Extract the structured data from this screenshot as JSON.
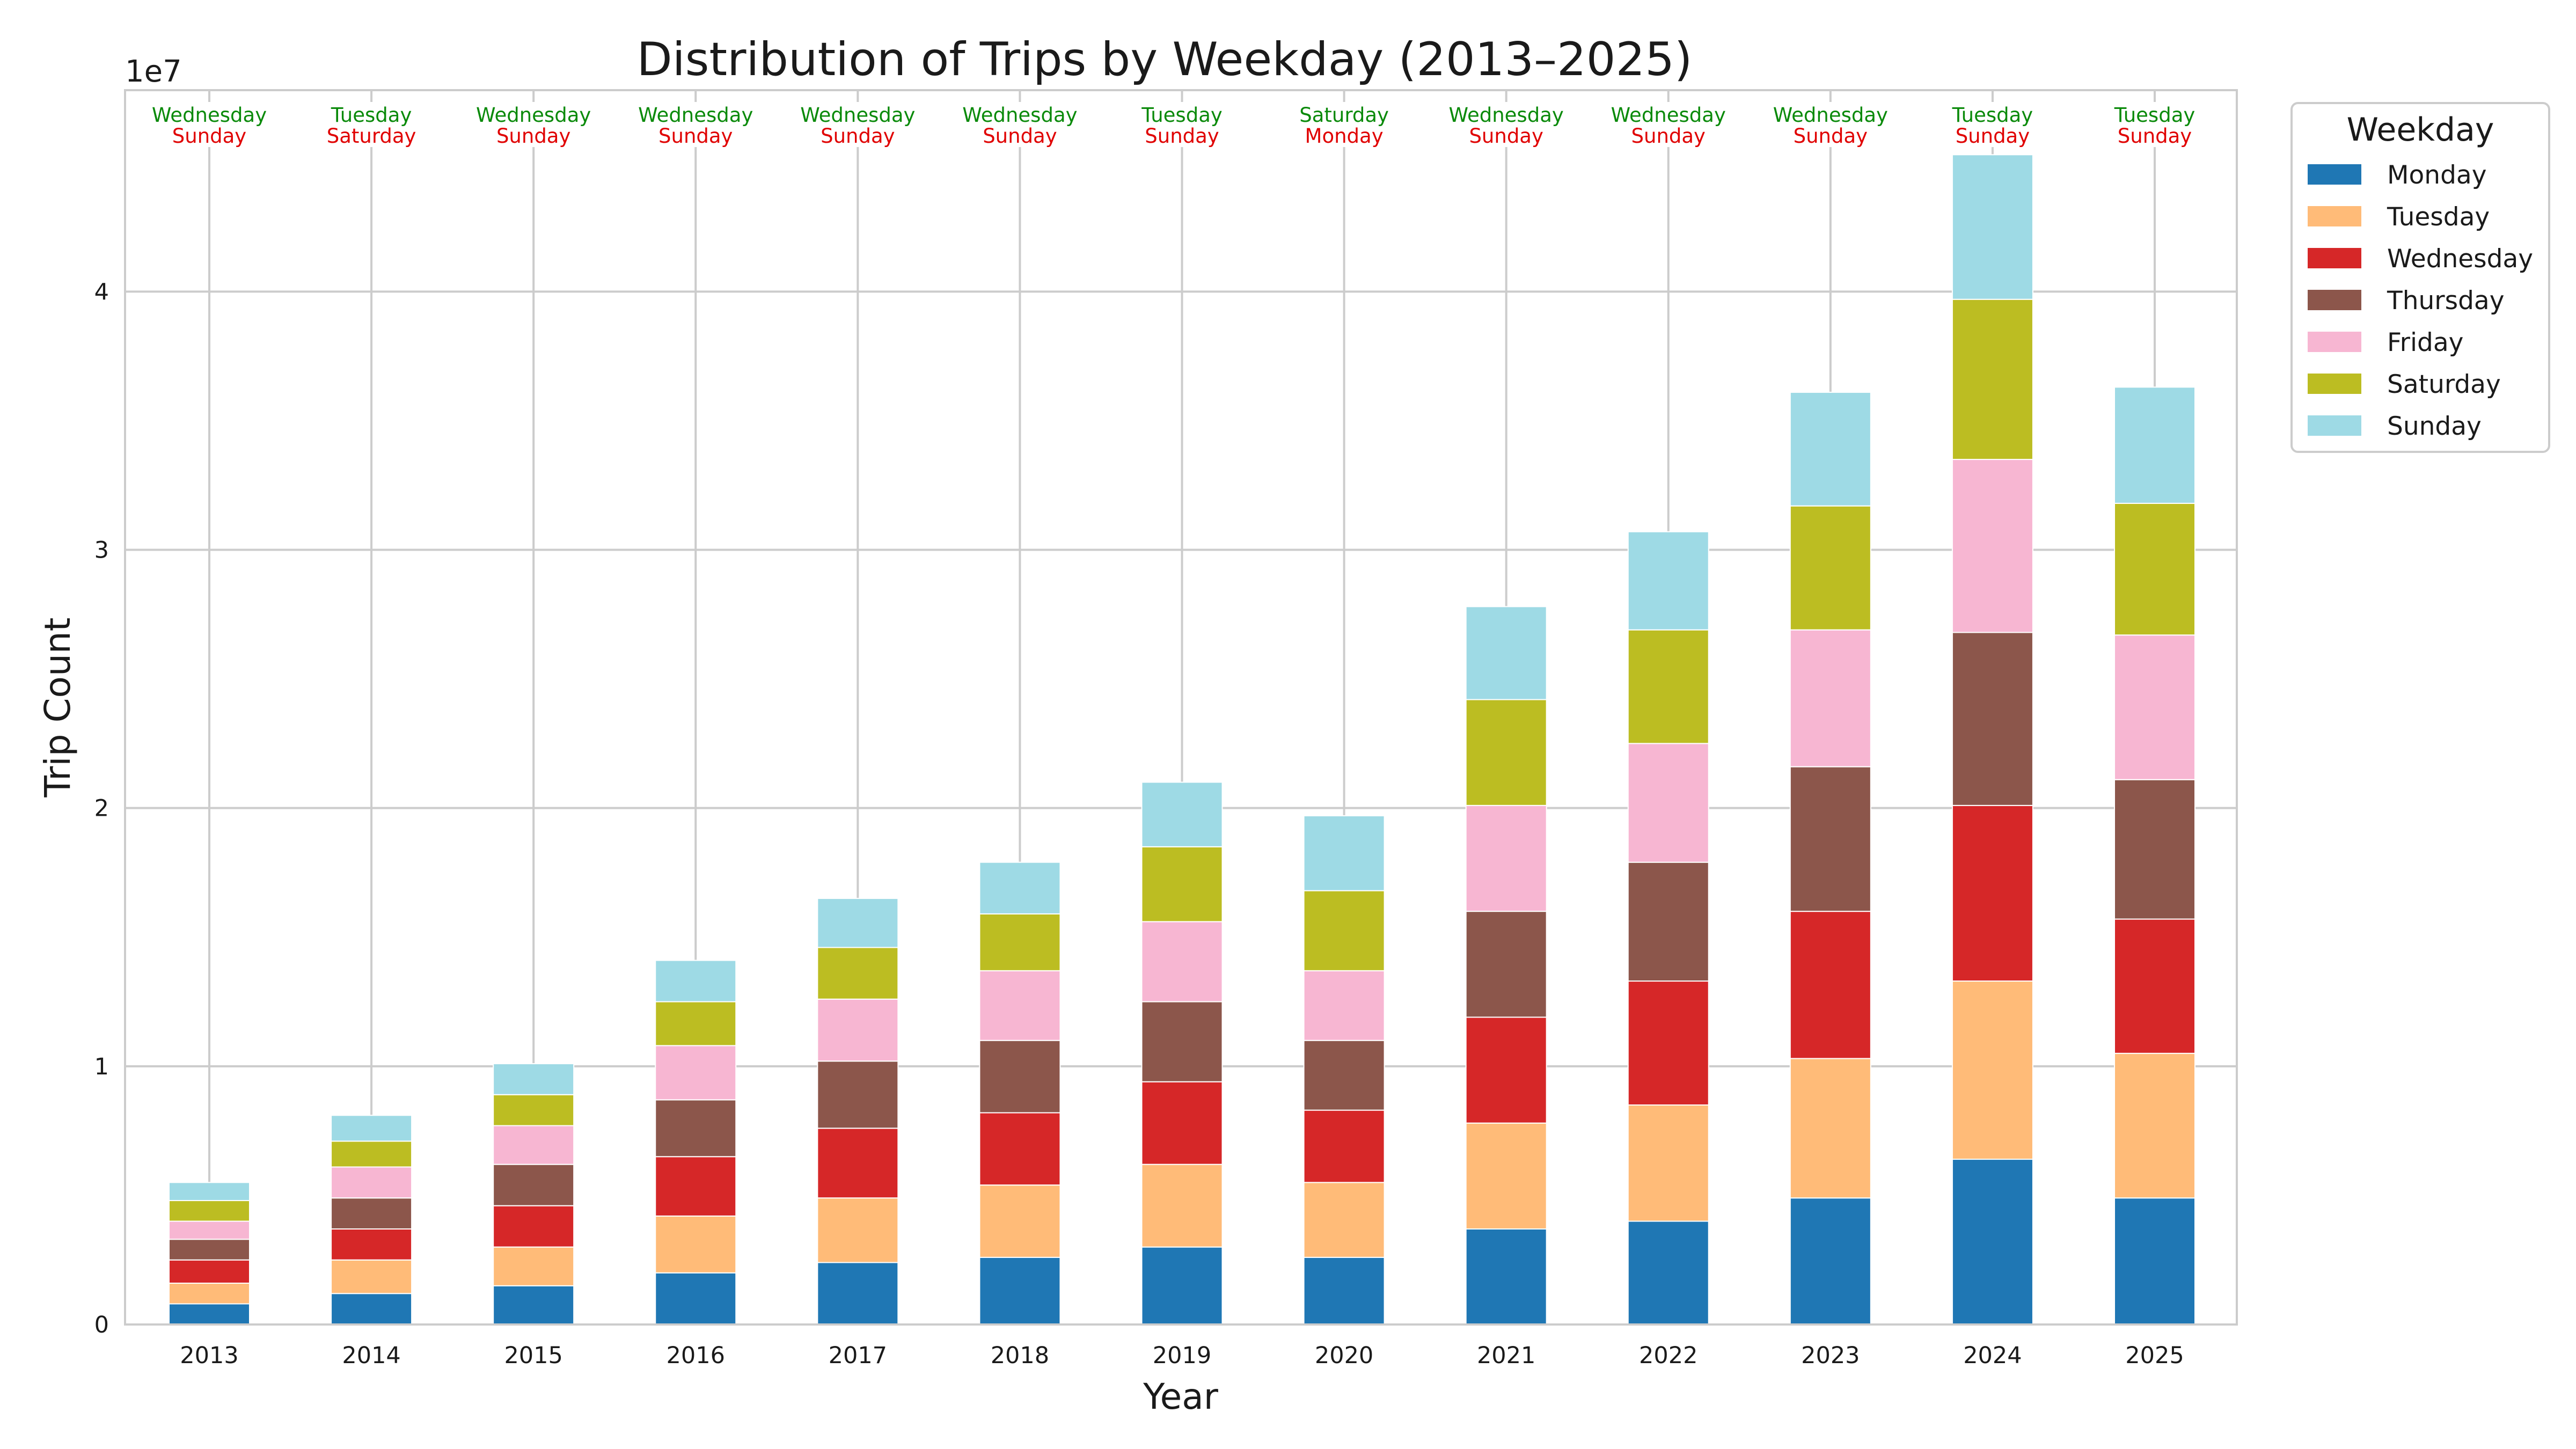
{
  "chart_data": {
    "type": "bar",
    "stacked": true,
    "title": "Distribution of Trips by Weekday (2013–2025)",
    "xlabel": "Year",
    "ylabel": "Trip Count",
    "y_multiplier_label": "1e7",
    "ylim": [
      0,
      4.78
    ],
    "yticks": [
      0,
      1,
      2,
      3,
      4
    ],
    "grid": true,
    "categories": [
      "2013",
      "2014",
      "2015",
      "2016",
      "2017",
      "2018",
      "2019",
      "2020",
      "2021",
      "2022",
      "2023",
      "2024",
      "2025"
    ],
    "legend": {
      "title": "Weekday",
      "placement": "outside-right"
    },
    "series": [
      {
        "name": "Monday",
        "color": "#1f77b4",
        "values": [
          0.08,
          0.12,
          0.15,
          0.2,
          0.24,
          0.26,
          0.3,
          0.26,
          0.37,
          0.4,
          0.49,
          0.64,
          0.49
        ]
      },
      {
        "name": "Tuesday",
        "color": "#ffbb78",
        "values": [
          0.08,
          0.13,
          0.15,
          0.22,
          0.25,
          0.28,
          0.32,
          0.29,
          0.41,
          0.45,
          0.54,
          0.69,
          0.56
        ]
      },
      {
        "name": "Wednesday",
        "color": "#d62728",
        "values": [
          0.09,
          0.12,
          0.16,
          0.23,
          0.27,
          0.28,
          0.32,
          0.28,
          0.41,
          0.48,
          0.57,
          0.68,
          0.52
        ]
      },
      {
        "name": "Thursday",
        "color": "#8c564b",
        "values": [
          0.08,
          0.12,
          0.16,
          0.22,
          0.26,
          0.28,
          0.31,
          0.27,
          0.41,
          0.46,
          0.56,
          0.67,
          0.54
        ]
      },
      {
        "name": "Friday",
        "color": "#f7b6d2",
        "values": [
          0.07,
          0.12,
          0.15,
          0.21,
          0.24,
          0.27,
          0.31,
          0.27,
          0.41,
          0.46,
          0.53,
          0.67,
          0.56
        ]
      },
      {
        "name": "Saturday",
        "color": "#bcbd22",
        "values": [
          0.08,
          0.1,
          0.12,
          0.17,
          0.2,
          0.22,
          0.29,
          0.31,
          0.41,
          0.44,
          0.48,
          0.62,
          0.51
        ]
      },
      {
        "name": "Sunday",
        "color": "#9edae5",
        "values": [
          0.07,
          0.1,
          0.12,
          0.16,
          0.19,
          0.2,
          0.25,
          0.29,
          0.36,
          0.38,
          0.44,
          0.56,
          0.45
        ]
      }
    ],
    "annotations": {
      "top": [
        "Wednesday",
        "Tuesday",
        "Wednesday",
        "Wednesday",
        "Wednesday",
        "Wednesday",
        "Tuesday",
        "Saturday",
        "Wednesday",
        "Wednesday",
        "Wednesday",
        "Tuesday",
        "Tuesday"
      ],
      "bottom": [
        "Sunday",
        "Saturday",
        "Sunday",
        "Sunday",
        "Sunday",
        "Sunday",
        "Sunday",
        "Monday",
        "Sunday",
        "Sunday",
        "Sunday",
        "Sunday",
        "Sunday"
      ],
      "top_color": "#0a8a0a",
      "bottom_color": "#e00000"
    }
  }
}
